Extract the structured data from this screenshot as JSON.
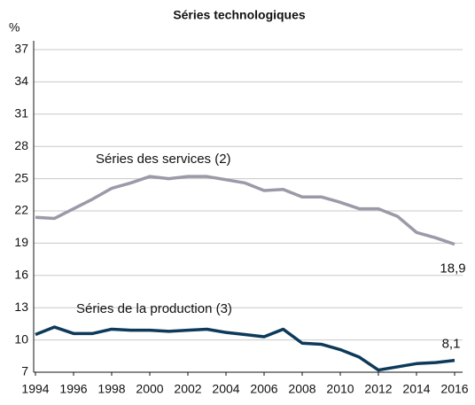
{
  "chart_data": {
    "type": "line",
    "title": "Séries technologiques",
    "y_unit": "%",
    "x": [
      1994,
      1995,
      1996,
      1997,
      1998,
      1999,
      2000,
      2001,
      2002,
      2003,
      2004,
      2005,
      2006,
      2007,
      2008,
      2009,
      2010,
      2011,
      2012,
      2013,
      2014,
      2015,
      2016
    ],
    "xlim": [
      1994,
      2016
    ],
    "xticks": [
      1994,
      1996,
      1998,
      2000,
      2002,
      2004,
      2006,
      2008,
      2010,
      2012,
      2014,
      2016
    ],
    "ylim": [
      7,
      37
    ],
    "yticks": [
      7,
      10,
      13,
      16,
      19,
      22,
      25,
      28,
      31,
      34,
      37
    ],
    "grid": true,
    "series": [
      {
        "name": "Séries des services (2)",
        "color": "#9a9aa8",
        "values": [
          21.4,
          21.3,
          22.2,
          23.1,
          24.1,
          24.6,
          25.2,
          25.0,
          25.2,
          25.2,
          24.9,
          24.6,
          23.9,
          24.0,
          23.3,
          23.3,
          22.8,
          22.2,
          22.2,
          21.5,
          20.0,
          19.5,
          18.9
        ],
        "value_labels": [
          null,
          null,
          null,
          null,
          null,
          null,
          null,
          null,
          null,
          null,
          null,
          null,
          null,
          null,
          null,
          null,
          null,
          null,
          null,
          null,
          null,
          null,
          "18,9"
        ]
      },
      {
        "name": "Séries de la production (3)",
        "color": "#0d3a5a",
        "values": [
          10.5,
          11.2,
          10.6,
          10.6,
          11.0,
          10.9,
          10.9,
          10.8,
          10.9,
          11.0,
          10.7,
          10.5,
          10.3,
          11.0,
          9.7,
          9.6,
          9.1,
          8.4,
          7.2,
          7.5,
          7.8,
          7.9,
          8.1
        ],
        "value_labels": [
          null,
          null,
          null,
          null,
          null,
          null,
          null,
          null,
          null,
          null,
          null,
          null,
          null,
          null,
          null,
          null,
          null,
          null,
          null,
          null,
          null,
          null,
          "8,1"
        ]
      }
    ]
  }
}
